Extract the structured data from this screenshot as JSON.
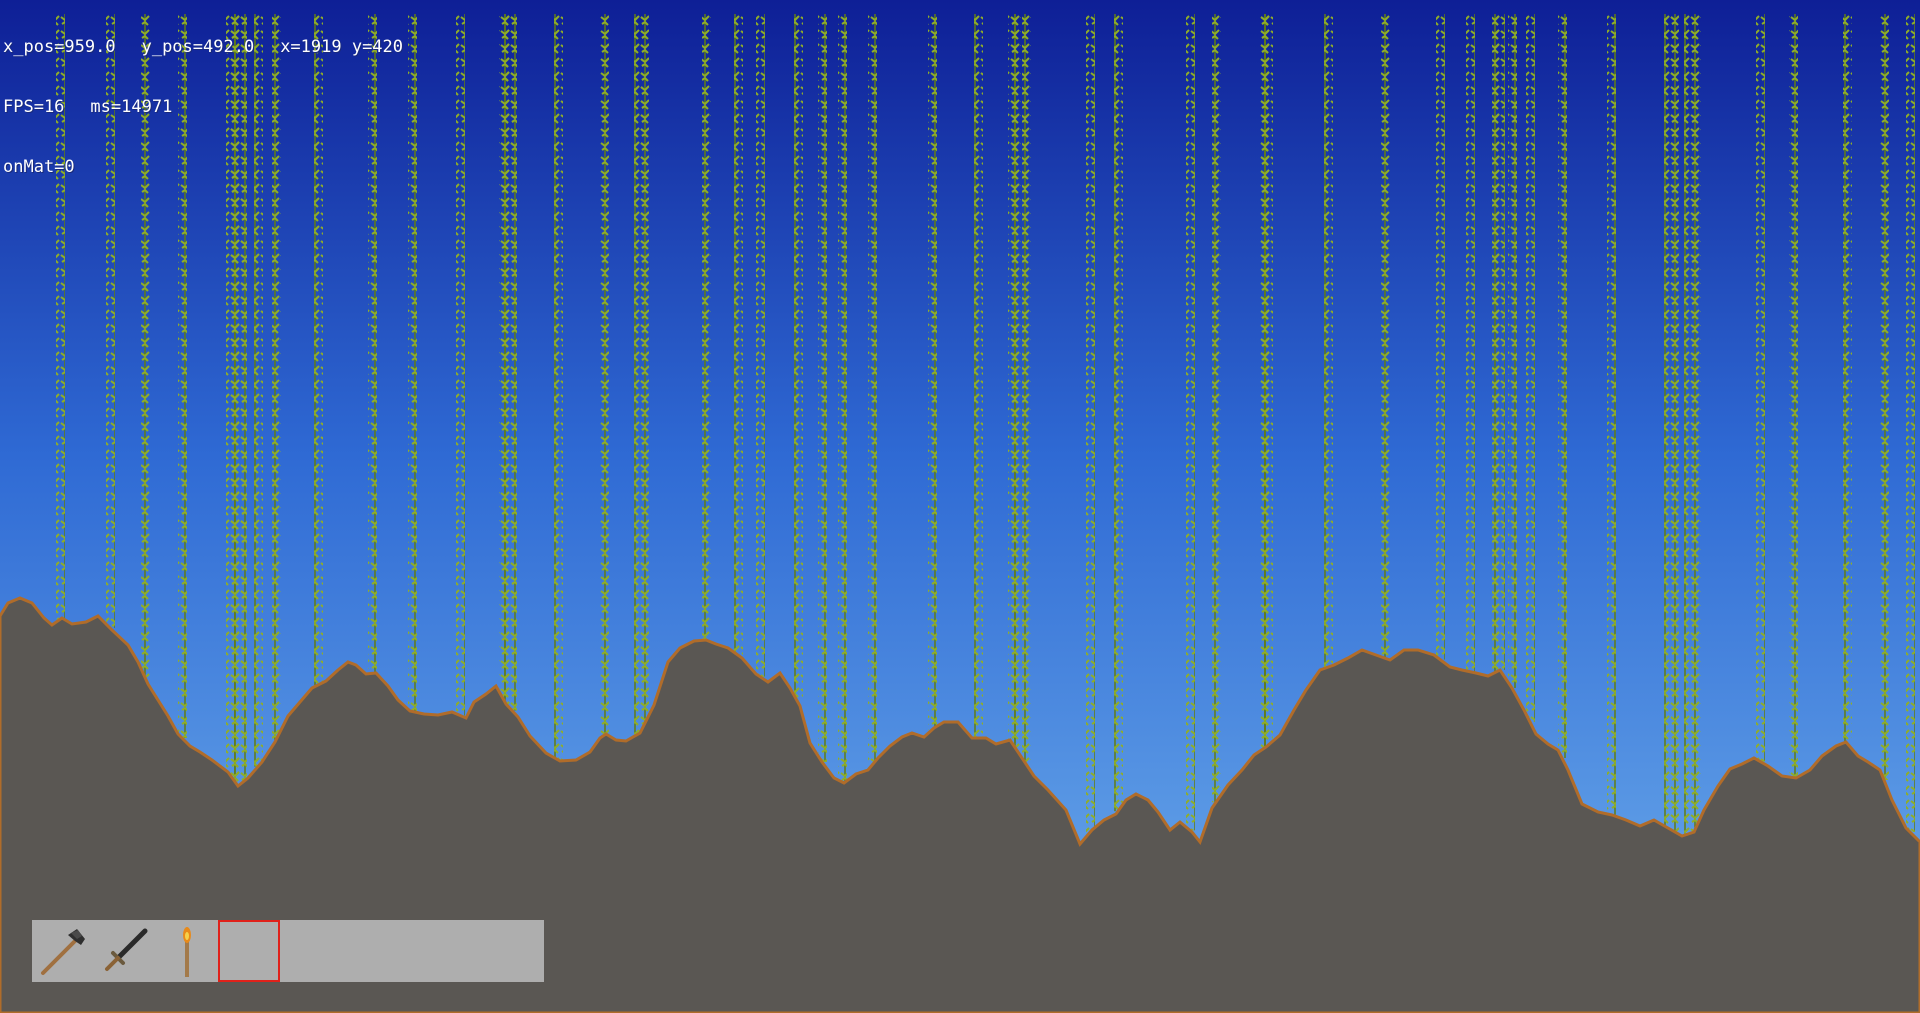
{
  "debug": {
    "x_pos": "x_pos=959.0",
    "y_pos": "y_pos=492.0",
    "cursor": "x=1919 y=420",
    "fps": "FPS=16",
    "ms": "ms=14971",
    "on_mat": "onMat=0"
  },
  "colors": {
    "sky_top": "#0e1f96",
    "sky_mid": "#2f6ad4",
    "sky_bottom": "#5e9de6",
    "ground": "#5a5753",
    "ground_edge": "#b06c2a",
    "vine": "#7e9c1e",
    "hotbar_bg": "#aeaeae",
    "selected_border": "#e0211a"
  },
  "hotbar": {
    "slots": [
      {
        "item": "axe-icon",
        "selected": false
      },
      {
        "item": "sword-icon",
        "selected": false
      },
      {
        "item": "torch-icon",
        "selected": false
      },
      {
        "item": "",
        "selected": true
      },
      {
        "item": "",
        "selected": false
      },
      {
        "item": "",
        "selected": false
      },
      {
        "item": "",
        "selected": false
      },
      {
        "item": "",
        "selected": false
      }
    ]
  }
}
